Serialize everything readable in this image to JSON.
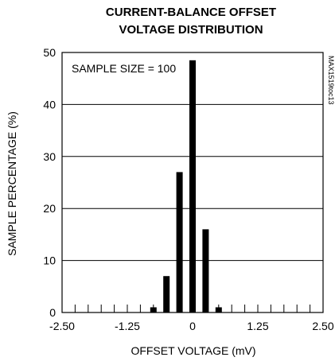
{
  "chart_data": {
    "type": "bar",
    "title_lines": [
      "CURRENT-BALANCE OFFSET",
      "VOLTAGE DISTRIBUTION"
    ],
    "xlabel": "OFFSET VOLTAGE (mV)",
    "ylabel": "SAMPLE PERCENTAGE (%)",
    "xlim": [
      -2.5,
      2.5
    ],
    "ylim": [
      0,
      50
    ],
    "x_ticks": [
      -2.5,
      -1.25,
      0,
      1.25,
      2.5
    ],
    "x_tick_labels": [
      "-2.50",
      "-1.25",
      "0",
      "1.25",
      "2.50"
    ],
    "y_ticks": [
      0,
      10,
      20,
      30,
      40,
      50
    ],
    "y_tick_labels": [
      "0",
      "10",
      "20",
      "30",
      "40",
      "50"
    ],
    "x_minor_tick_step": 0.25,
    "grid": "horizontal",
    "annotation": "SAMPLE SIZE = 100",
    "side_tag": "MAX1519toc13",
    "x": [
      -0.75,
      -0.5,
      -0.25,
      0,
      0.25,
      0.5
    ],
    "values": [
      1,
      7,
      27,
      48.5,
      16,
      1
    ],
    "bar_color": "#000000"
  }
}
